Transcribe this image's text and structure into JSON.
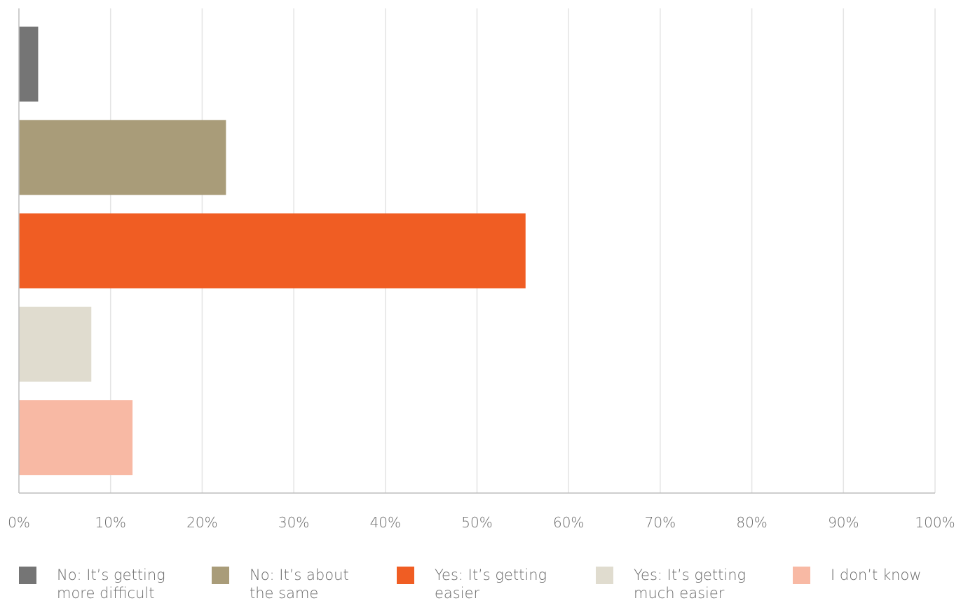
{
  "chart_data": {
    "type": "bar",
    "orientation": "horizontal",
    "categories": [
      "No: It’s getting more difficult",
      "No: It’s about the same",
      "Yes: It’s getting easier",
      "Yes: It’s getting much easier",
      "I don’t know"
    ],
    "values": [
      2.1,
      22.6,
      55.3,
      7.9,
      12.4
    ],
    "colors": [
      "#757575",
      "#a99c79",
      "#f05d23",
      "#e0dccf",
      "#f8b9a4"
    ],
    "xlim": [
      0,
      100
    ],
    "x_ticks": [
      0,
      10,
      20,
      30,
      40,
      50,
      60,
      70,
      80,
      90,
      100
    ],
    "x_tick_labels": [
      "0%",
      "10%",
      "20%",
      "30%",
      "40%",
      "50%",
      "60%",
      "70%",
      "80%",
      "90%",
      "100%"
    ],
    "grid": true,
    "legend_position": "bottom",
    "legend": [
      {
        "line1": "No: It’s getting",
        "line2": "more difficult",
        "color": "#757575"
      },
      {
        "line1": "No: It’s about",
        "line2": "the same",
        "color": "#a99c79"
      },
      {
        "line1": "Yes: It’s getting",
        "line2": "easier",
        "color": "#f05d23"
      },
      {
        "line1": "Yes: It’s getting",
        "line2": "much easier",
        "color": "#e0dccf"
      },
      {
        "line1": "I don’t know",
        "line2": "",
        "color": "#f8b9a4"
      }
    ]
  }
}
